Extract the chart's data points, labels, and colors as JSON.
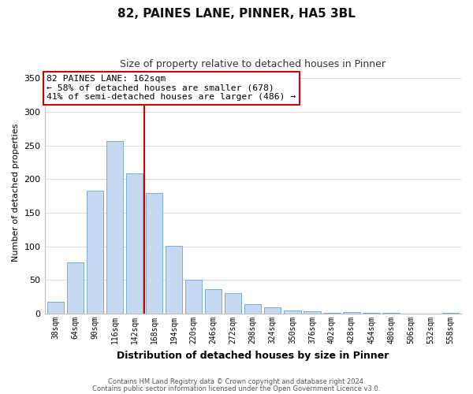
{
  "title": "82, PAINES LANE, PINNER, HA5 3BL",
  "subtitle": "Size of property relative to detached houses in Pinner",
  "xlabel": "Distribution of detached houses by size in Pinner",
  "ylabel": "Number of detached properties",
  "bar_labels": [
    "38sqm",
    "64sqm",
    "90sqm",
    "116sqm",
    "142sqm",
    "168sqm",
    "194sqm",
    "220sqm",
    "246sqm",
    "272sqm",
    "298sqm",
    "324sqm",
    "350sqm",
    "376sqm",
    "402sqm",
    "428sqm",
    "454sqm",
    "480sqm",
    "506sqm",
    "532sqm",
    "558sqm"
  ],
  "bar_heights": [
    18,
    76,
    183,
    257,
    209,
    179,
    101,
    50,
    37,
    31,
    14,
    10,
    5,
    4,
    1,
    2,
    1,
    1,
    0,
    0,
    1
  ],
  "bar_color": "#c5d9f1",
  "bar_edge_color": "#7faacc",
  "vline_x": 4.5,
  "vline_color": "#cc0000",
  "annotation_text": "82 PAINES LANE: 162sqm\n← 58% of detached houses are smaller (678)\n41% of semi-detached houses are larger (486) →",
  "annotation_box_color": "#ffffff",
  "annotation_box_edge": "#cc0000",
  "ylim": [
    0,
    360
  ],
  "yticks": [
    0,
    50,
    100,
    150,
    200,
    250,
    300,
    350
  ],
  "footer_line1": "Contains HM Land Registry data © Crown copyright and database right 2024.",
  "footer_line2": "Contains public sector information licensed under the Open Government Licence v3.0.",
  "background_color": "#ffffff",
  "grid_color": "#d0dce8"
}
